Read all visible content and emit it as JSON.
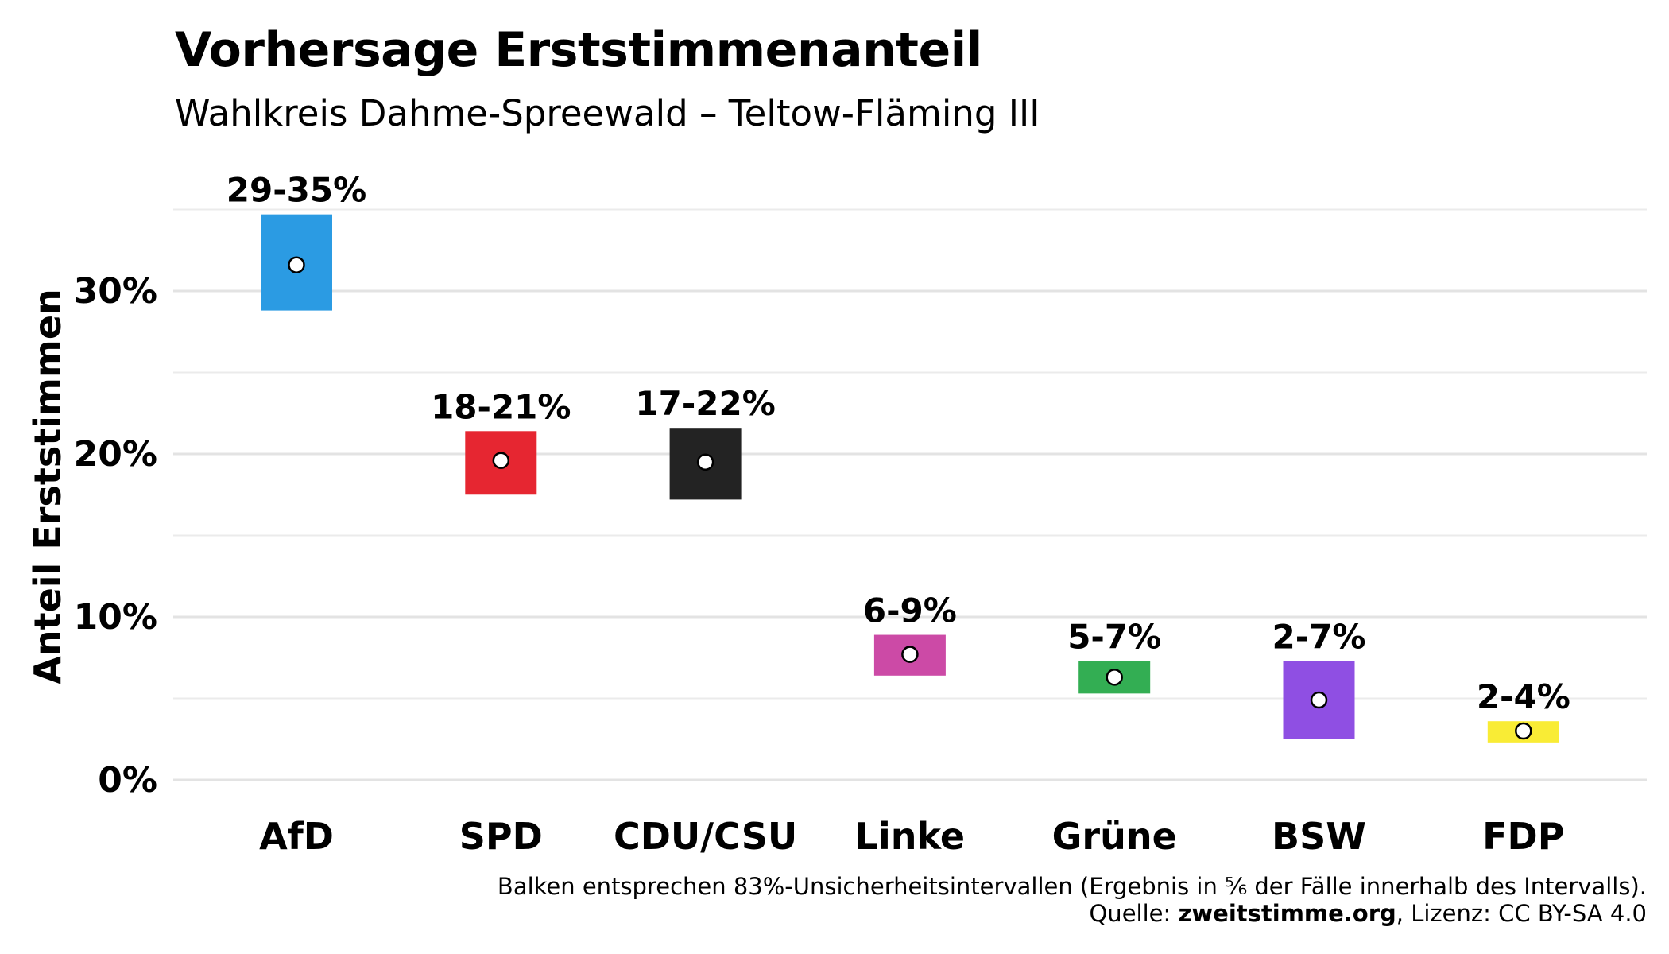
{
  "header": {
    "title": "Vorhersage Erststimmenanteil",
    "subtitle": "Wahlkreis Dahme-Spreewald – Teltow-Fläming III"
  },
  "caption": {
    "line1": "Balken entsprechen 83%-Unsicherheitsintervallen (Ergebnis in ⅚ der Fälle innerhalb des Intervalls).",
    "source_prefix": "Quelle: ",
    "source_bold": "zweitstimme.org",
    "source_suffix": ", Lizenz: CC BY-SA 4.0"
  },
  "chart_data": {
    "type": "bar",
    "subtype": "interval",
    "title": "Vorhersage Erststimmenanteil",
    "subtitle": "Wahlkreis Dahme-Spreewald – Teltow-Fläming III",
    "xlabel": "",
    "ylabel": "Anteil Erststimmen",
    "ylim": [
      0,
      36
    ],
    "yticks": [
      0,
      10,
      20,
      30
    ],
    "ytick_labels": [
      "0%",
      "10%",
      "20%",
      "30%"
    ],
    "grid": true,
    "legend": "none",
    "categories": [
      "AfD",
      "SPD",
      "CDU/CSU",
      "Linke",
      "Grüne",
      "BSW",
      "FDP"
    ],
    "lower": [
      28.8,
      17.5,
      17.2,
      6.4,
      5.3,
      2.5,
      2.3
    ],
    "upper": [
      34.7,
      21.4,
      21.6,
      8.9,
      7.3,
      7.3,
      3.6
    ],
    "point": [
      31.6,
      19.6,
      19.5,
      7.7,
      6.3,
      4.9,
      3.0
    ],
    "labels": [
      "29-35%",
      "18-21%",
      "17-22%",
      "6-9%",
      "5-7%",
      "2-7%",
      "2-4%"
    ],
    "colors": [
      "#2b9be3",
      "#e62631",
      "#232323",
      "#cc4aa6",
      "#33ae53",
      "#8f4fe3",
      "#f9ec35"
    ]
  }
}
